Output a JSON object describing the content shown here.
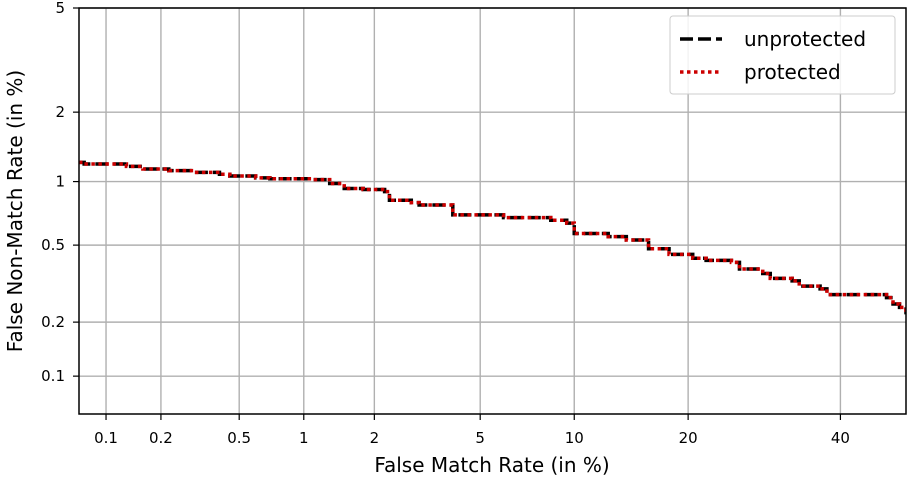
{
  "chart_data": {
    "type": "line",
    "title": "",
    "xlabel": "False Match Rate (in %)",
    "ylabel": "False Non-Match Rate (in %)",
    "xscale": "probit",
    "yscale": "probit",
    "xlim": [
      0.07,
      50
    ],
    "ylim": [
      0.06,
      5
    ],
    "x_ticks": [
      0.1,
      0.2,
      0.5,
      1,
      2,
      5,
      10,
      20,
      40
    ],
    "x_tick_labels": [
      "0.1",
      "0.2",
      "0.5",
      "1",
      "2",
      "5",
      "10",
      "20",
      "40"
    ],
    "y_ticks": [
      0.1,
      0.2,
      0.5,
      1,
      2,
      5
    ],
    "y_tick_labels": [
      "0.1",
      "0.2",
      "0.5",
      "1",
      "2",
      "5"
    ],
    "grid": true,
    "legend_position": "top-right",
    "series": [
      {
        "name": "unprotected",
        "color": "#000000",
        "style": "dashed",
        "x": [
          0.07,
          0.075,
          0.1,
          0.13,
          0.16,
          0.22,
          0.3,
          0.4,
          0.45,
          0.6,
          0.7,
          0.9,
          1.1,
          1.3,
          1.5,
          1.8,
          2.2,
          2.3,
          2.8,
          3.0,
          4.0,
          6.0,
          8.0,
          8.5,
          9.5,
          10.0,
          12.5,
          14.0,
          16.0,
          18.0,
          20.5,
          22.0,
          25.0,
          26.0,
          29.0,
          30.0,
          33.0,
          34.0,
          37.0,
          38.0,
          43.0,
          47.0,
          48.0,
          49.0,
          50.0
        ],
        "y": [
          1.22,
          1.2,
          1.2,
          1.17,
          1.14,
          1.12,
          1.1,
          1.08,
          1.06,
          1.04,
          1.03,
          1.03,
          1.02,
          0.98,
          0.93,
          0.92,
          0.9,
          0.82,
          0.8,
          0.78,
          0.7,
          0.68,
          0.68,
          0.66,
          0.64,
          0.57,
          0.55,
          0.53,
          0.48,
          0.45,
          0.43,
          0.42,
          0.41,
          0.38,
          0.36,
          0.34,
          0.33,
          0.31,
          0.3,
          0.28,
          0.28,
          0.27,
          0.25,
          0.24,
          0.22
        ]
      },
      {
        "name": "protected",
        "color": "#cc0000",
        "style": "dotted",
        "x": [
          0.07,
          0.075,
          0.1,
          0.13,
          0.16,
          0.22,
          0.3,
          0.4,
          0.45,
          0.6,
          0.7,
          0.9,
          1.1,
          1.3,
          1.5,
          1.8,
          2.2,
          2.3,
          2.8,
          3.0,
          4.0,
          6.0,
          8.0,
          8.5,
          9.5,
          10.0,
          12.5,
          14.0,
          16.0,
          18.0,
          20.5,
          22.0,
          25.0,
          26.0,
          29.0,
          30.0,
          33.0,
          34.0,
          37.0,
          38.0,
          43.0,
          47.0,
          48.0,
          49.0,
          50.0
        ],
        "y": [
          1.22,
          1.2,
          1.2,
          1.17,
          1.14,
          1.12,
          1.1,
          1.08,
          1.06,
          1.04,
          1.03,
          1.03,
          1.02,
          0.98,
          0.93,
          0.92,
          0.9,
          0.82,
          0.8,
          0.78,
          0.7,
          0.68,
          0.68,
          0.66,
          0.64,
          0.57,
          0.55,
          0.53,
          0.48,
          0.45,
          0.43,
          0.42,
          0.41,
          0.38,
          0.36,
          0.34,
          0.33,
          0.31,
          0.3,
          0.28,
          0.28,
          0.27,
          0.25,
          0.24,
          0.22
        ]
      }
    ]
  }
}
